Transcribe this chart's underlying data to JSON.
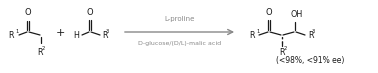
{
  "fig_width": 3.78,
  "fig_height": 0.73,
  "dpi": 100,
  "bg_color": "#ffffff",
  "text_color": "#1a1a1a",
  "gray_color": "#888888",
  "arrow_color": "#888888",
  "arrow_label_top": "L-proline",
  "arrow_label_bottom": "D-glucose/(D/L)-malic acid",
  "yield_text": "(<98%, <91% ee)",
  "font_size_main": 6.5,
  "font_size_label": 5.8,
  "font_size_small": 5.0,
  "font_size_yield": 5.5,
  "font_size_superscript": 3.8,
  "font_size_O": 6.0
}
